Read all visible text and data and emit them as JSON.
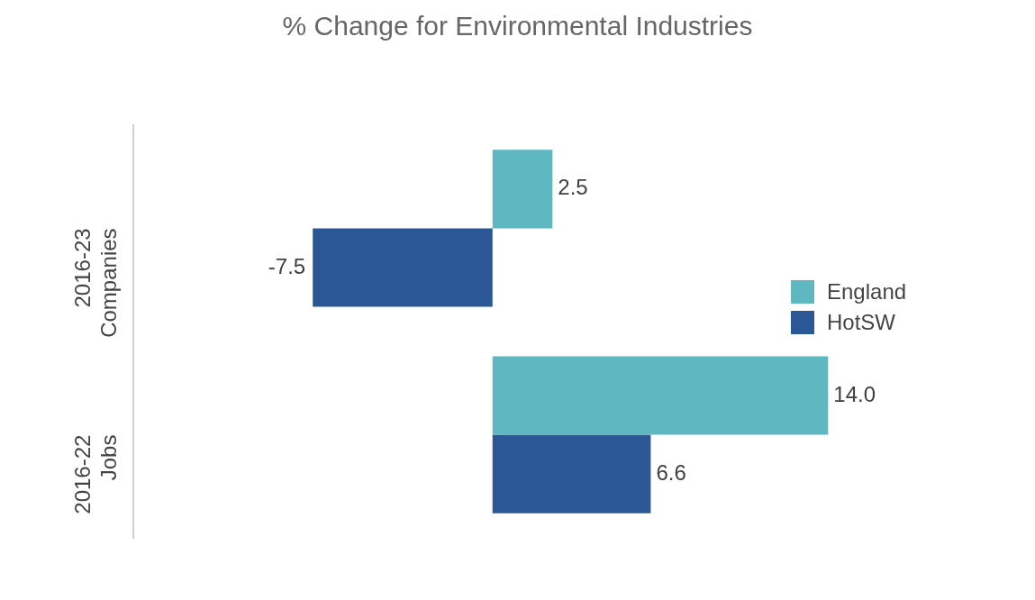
{
  "chart_data": {
    "type": "bar",
    "orientation": "horizontal",
    "title": "% Change for Environmental Industries",
    "categories": [
      "2016-23\nCompanies",
      "2016-22\nJobs"
    ],
    "series": [
      {
        "name": "England",
        "color": "#5fb7c1",
        "values": [
          2.5,
          14.0
        ],
        "value_labels": [
          "2.5",
          "14.0"
        ]
      },
      {
        "name": "HotSW",
        "color": "#2b5797",
        "values": [
          -7.5,
          6.6
        ],
        "value_labels": [
          "-7.5",
          "6.6"
        ]
      }
    ],
    "legend": "right",
    "grid": false
  }
}
